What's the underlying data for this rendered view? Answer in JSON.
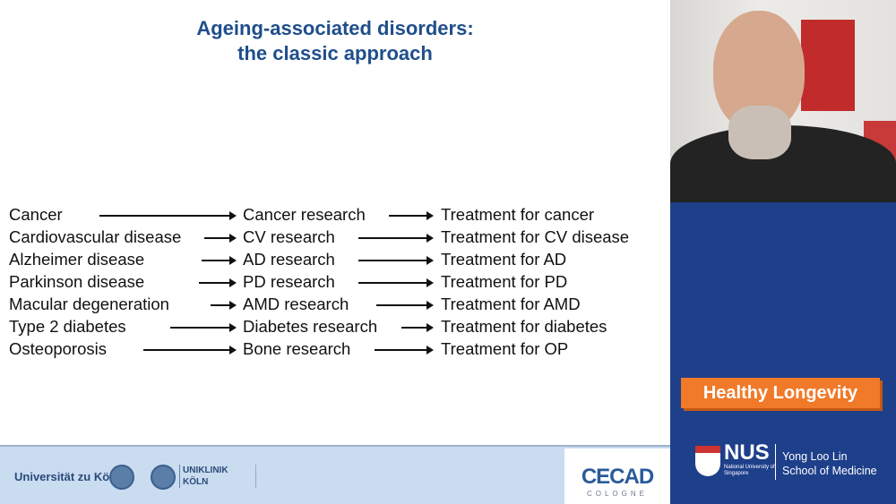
{
  "slide": {
    "title_line1": "Ageing-associated disorders:",
    "title_line2": "the classic approach",
    "rows": [
      {
        "disorder": "Cancer",
        "research": "Cancer research",
        "treatment": "Treatment for cancer"
      },
      {
        "disorder": "Cardiovascular disease",
        "research": "CV research",
        "treatment": "Treatment for CV disease"
      },
      {
        "disorder": "Alzheimer disease",
        "research": "AD research",
        "treatment": "Treatment for AD"
      },
      {
        "disorder": "Parkinson disease",
        "research": "PD research",
        "treatment": "Treatment for PD"
      },
      {
        "disorder": "Macular degeneration",
        "research": "AMD research",
        "treatment": "Treatment for AMD"
      },
      {
        "disorder": "Type 2 diabetes",
        "research": "Diabetes research",
        "treatment": "Treatment for diabetes"
      },
      {
        "disorder": "Osteoporosis",
        "research": "Bone research",
        "treatment": "Treatment for OP"
      }
    ],
    "footer": {
      "uni": "Universität zu Köln",
      "uniklinik_line1": "UNIKLINIK",
      "uniklinik_line2": "KÖLN",
      "cecad": "CECAD",
      "cecad_sub": "COLOGNE"
    }
  },
  "sidebar": {
    "badge": "Healthy Longevity",
    "nus": "NUS",
    "nus_sub": "National University of Singapore",
    "school_line1": "Yong Loo Lin",
    "school_line2": "School of Medicine",
    "colors": {
      "panel": "#1e3f8a",
      "badge": "#f07a2a",
      "title": "#1f4e8c"
    }
  }
}
